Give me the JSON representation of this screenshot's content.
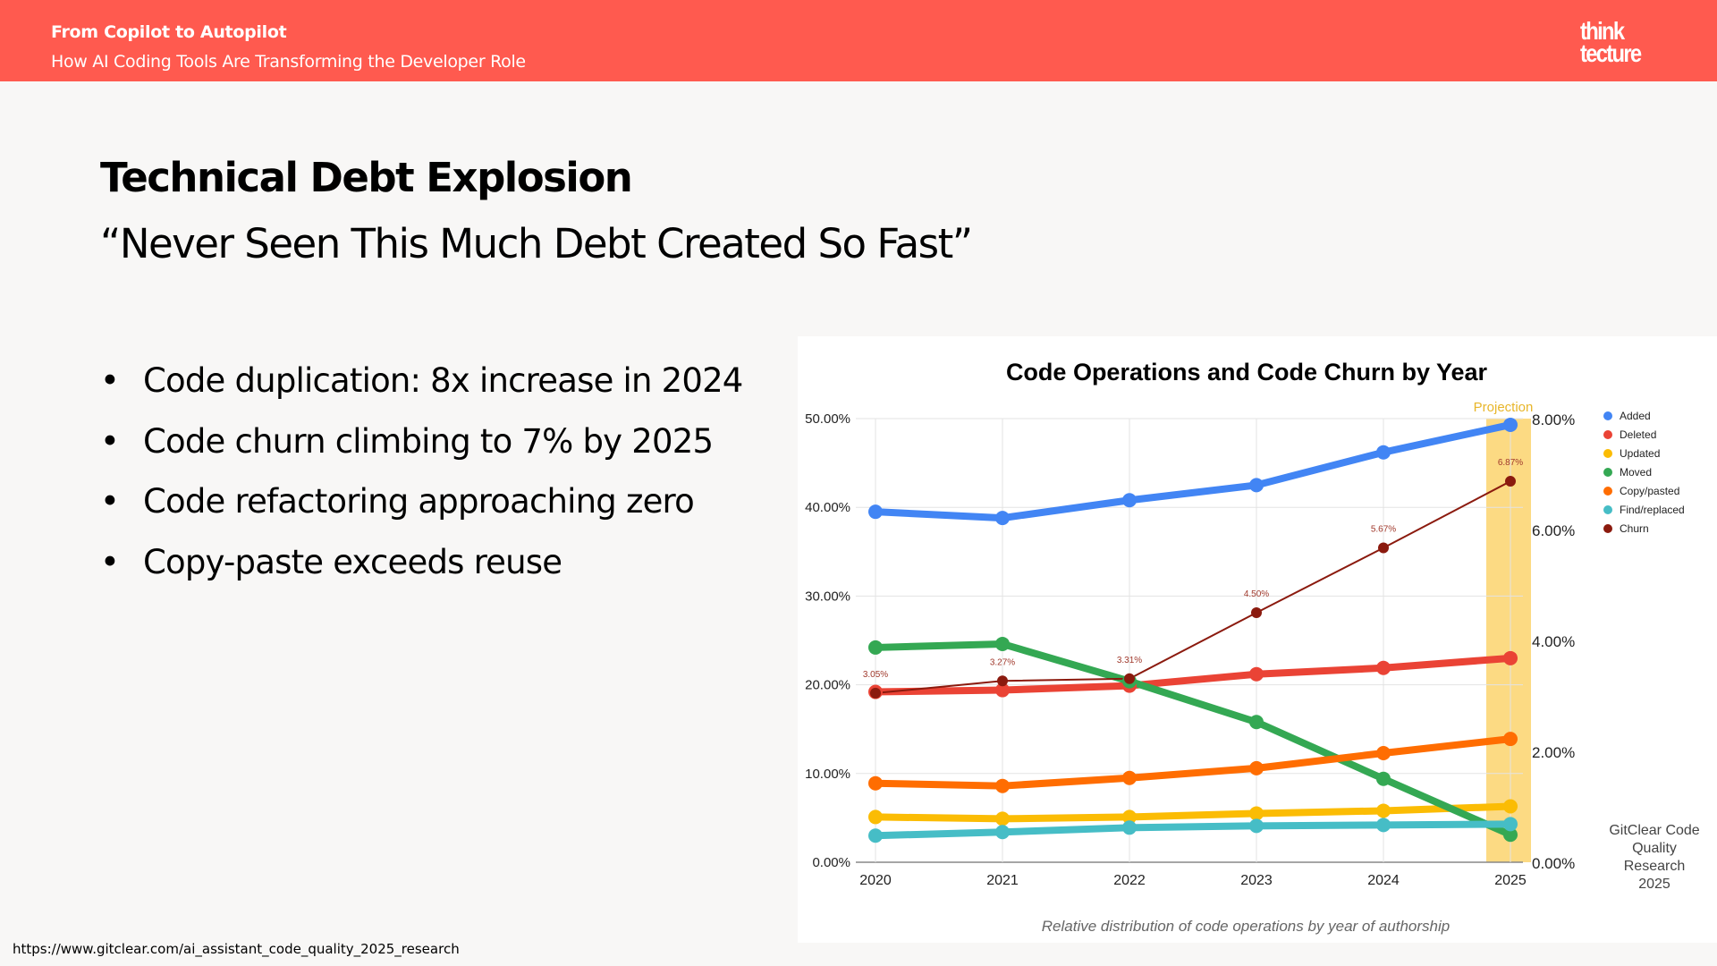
{
  "header": {
    "title": "From Copilot to Autopilot",
    "subtitle": "How AI Coding Tools Are Transforming the Developer Role",
    "logo_line1": "think",
    "logo_line2": "tecture",
    "background_color": "#ff5a4f"
  },
  "slide": {
    "title": "Technical Debt Explosion",
    "subtitle": "“Never Seen This Much Debt Created So Fast”",
    "bullets": [
      "Code duplication: 8x increase in 2024",
      "Code churn climbing to 7% by 2025",
      "Code refactoring approaching zero",
      "Copy-paste exceeds reuse"
    ],
    "bullet_glyph": "•",
    "source_url": "https://www.gitclear.com/ai_assistant_code_quality_2025_research"
  },
  "chart_data": {
    "type": "line",
    "title": "Code Operations and Code Churn by Year",
    "caption": "Relative distribution of code operations by year of authorship",
    "attribution": [
      "GitClear Code",
      "Quality",
      "Research",
      "2025"
    ],
    "projection_label": "Projection",
    "projection_category": "2025",
    "categories": [
      "2020",
      "2021",
      "2022",
      "2023",
      "2024",
      "2025"
    ],
    "xlabel": "",
    "ylabel_left": "",
    "ylabel_right": "",
    "ylim_left": [
      0,
      50
    ],
    "yticks_left": [
      "0.00%",
      "10.00%",
      "20.00%",
      "30.00%",
      "40.00%",
      "50.00%"
    ],
    "ylim_right": [
      0,
      8
    ],
    "yticks_right": [
      "0.00%",
      "2.00%",
      "4.00%",
      "6.00%",
      "8.00%"
    ],
    "grid": true,
    "legend_position": "right",
    "series": [
      {
        "name": "Added",
        "axis": "left",
        "color": "#4285f4",
        "values": [
          39.5,
          38.8,
          40.8,
          42.5,
          46.2,
          49.3
        ]
      },
      {
        "name": "Deleted",
        "axis": "left",
        "color": "#ea4335",
        "values": [
          19.2,
          19.4,
          19.9,
          21.2,
          21.9,
          23.0
        ]
      },
      {
        "name": "Updated",
        "axis": "left",
        "color": "#fbbc04",
        "values": [
          5.1,
          4.9,
          5.1,
          5.5,
          5.8,
          6.3
        ]
      },
      {
        "name": "Moved",
        "axis": "left",
        "color": "#34a853",
        "values": [
          24.2,
          24.6,
          20.4,
          15.8,
          9.4,
          3.1
        ]
      },
      {
        "name": "Copy/pasted",
        "axis": "left",
        "color": "#ff6d01",
        "values": [
          8.9,
          8.6,
          9.5,
          10.6,
          12.3,
          13.9
        ]
      },
      {
        "name": "Find/replaced",
        "axis": "left",
        "color": "#46bdc6",
        "values": [
          3.0,
          3.4,
          3.9,
          4.1,
          4.2,
          4.3
        ]
      },
      {
        "name": "Churn",
        "axis": "right",
        "color": "#8b1a0e",
        "values": [
          3.05,
          3.27,
          3.31,
          4.5,
          5.67,
          6.87
        ],
        "data_labels": [
          "3.05%",
          "3.27%",
          "3.31%",
          "4.50%",
          "5.67%",
          "6.87%"
        ]
      }
    ]
  }
}
